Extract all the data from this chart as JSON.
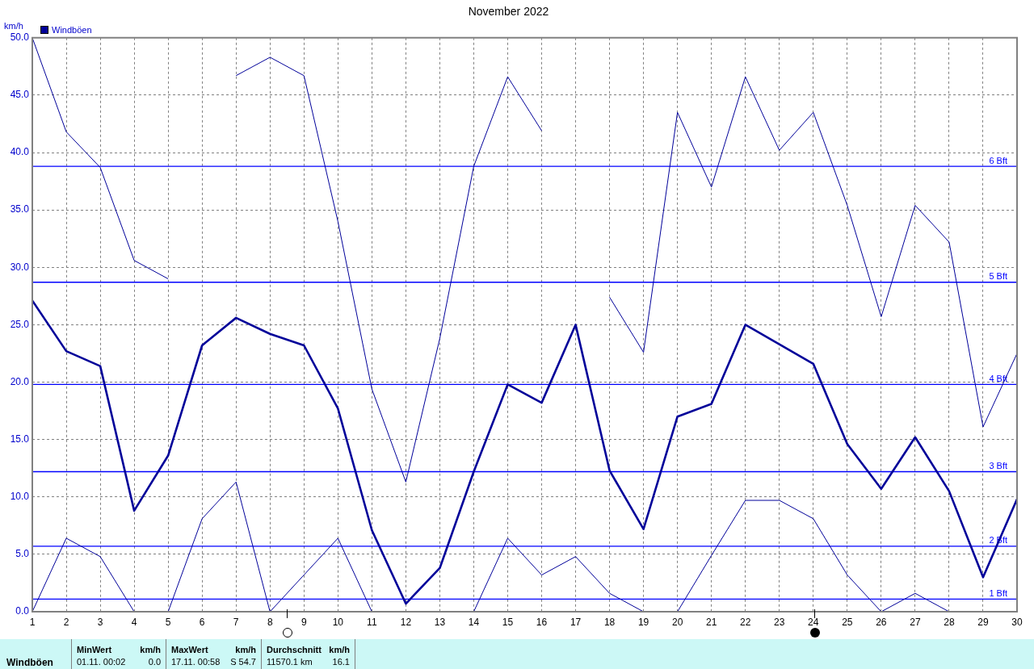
{
  "chart_data": {
    "type": "line",
    "title": "November 2022",
    "ylabel": "km/h",
    "x": [
      1,
      2,
      3,
      4,
      5,
      6,
      7,
      8,
      9,
      10,
      11,
      12,
      13,
      14,
      15,
      16,
      17,
      18,
      19,
      20,
      21,
      22,
      23,
      24,
      25,
      26,
      27,
      28,
      29,
      30
    ],
    "xlim": [
      1,
      30
    ],
    "xticks": [
      1,
      2,
      3,
      4,
      5,
      6,
      7,
      8,
      9,
      10,
      11,
      12,
      13,
      14,
      15,
      16,
      17,
      18,
      19,
      20,
      21,
      22,
      23,
      24,
      25,
      26,
      27,
      28,
      29,
      30
    ],
    "ylim": [
      0,
      50
    ],
    "yticks": [
      {
        "value": 0,
        "label": "0.0"
      },
      {
        "value": 5,
        "label": "5.0"
      },
      {
        "value": 10,
        "label": "10.0"
      },
      {
        "value": 15,
        "label": "15.0"
      },
      {
        "value": 20,
        "label": "20.0"
      },
      {
        "value": 25,
        "label": "25.0"
      },
      {
        "value": 30,
        "label": "30.0"
      },
      {
        "value": 35,
        "label": "35.0"
      },
      {
        "value": 40,
        "label": "40.0"
      },
      {
        "value": 45,
        "label": "45.0"
      },
      {
        "value": 50,
        "label": "50.0"
      }
    ],
    "grid": true,
    "legend": "top left",
    "marker": "none",
    "series": [
      {
        "name": "Windböen",
        "color": "#000099",
        "values": [
          27.1,
          22.7,
          21.4,
          8.8,
          13.6,
          23.2,
          25.6,
          24.2,
          23.2,
          17.7,
          7.1,
          0.7,
          3.8,
          12.2,
          19.8,
          18.2,
          25.0,
          12.3,
          7.2,
          17.0,
          18.1,
          25.0,
          23.3,
          21.6,
          14.6,
          10.7,
          15.2,
          10.5,
          3.0,
          9.8
        ]
      },
      {
        "color": "#000099",
        "values": [
          50.0,
          41.8,
          38.7,
          30.6,
          29.0,
          null,
          46.7,
          48.3,
          46.7,
          34.0,
          19.4,
          11.3,
          23.8,
          38.8,
          46.6,
          41.9,
          null,
          27.4,
          22.6,
          43.5,
          37.0,
          46.6,
          40.2,
          43.5,
          35.4,
          25.7,
          35.4,
          32.2,
          16.1,
          22.5
        ]
      },
      {
        "color": "#000099",
        "values": [
          0.0,
          6.4,
          4.8,
          0.0,
          0.0,
          8.1,
          11.3,
          0.0,
          3.2,
          6.4,
          0.0,
          null,
          null,
          0.0,
          6.4,
          3.2,
          4.8,
          1.6,
          0.0,
          0.0,
          4.9,
          9.7,
          9.7,
          8.1,
          3.2,
          0.0,
          1.6,
          0.0,
          null,
          null
        ]
      }
    ],
    "ref_lines": [
      {
        "axis": "y",
        "value": 1.1,
        "label": "1 Bft",
        "color": "#0000ff"
      },
      {
        "axis": "y",
        "value": 5.7,
        "label": "2 Bft",
        "color": "#0000ff"
      },
      {
        "axis": "y",
        "value": 12.2,
        "label": "3 Bft",
        "color": "#0000ff"
      },
      {
        "axis": "y",
        "value": 19.8,
        "label": "4 Bft",
        "color": "#0000ff"
      },
      {
        "axis": "y",
        "value": 28.7,
        "label": "5 Bft",
        "color": "#0000ff"
      },
      {
        "axis": "y",
        "value": 38.8,
        "label": "6 Bft",
        "color": "#0000ff"
      }
    ],
    "annotations": [
      "Windböen",
      "MinWert",
      "km/h",
      "01.11. 00:02",
      "0.0",
      "MaxWert",
      "km/h",
      "17.11. 00:58",
      "S 54.7",
      "Durchschnitt",
      "km/h",
      "11570.1 km",
      "16.1"
    ]
  }
}
